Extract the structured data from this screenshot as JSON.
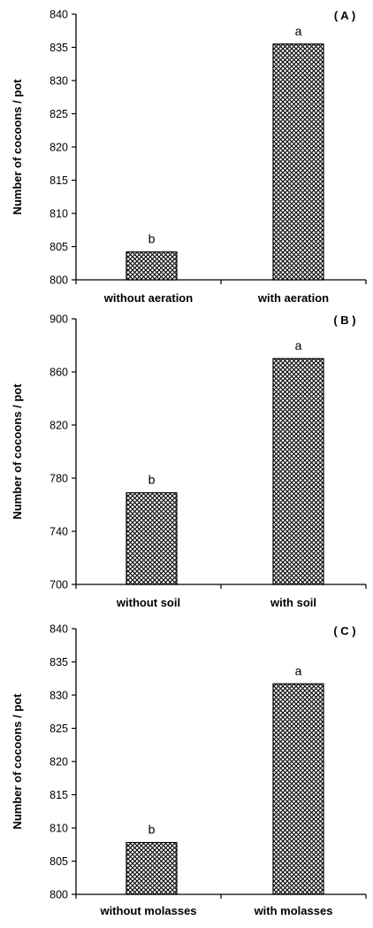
{
  "chart_data": [
    {
      "type": "bar",
      "panel_label": "( A )",
      "ylabel": "Number of cocoons / pot",
      "ylim": [
        800,
        840
      ],
      "yticks": [
        "800",
        "805",
        "810",
        "815",
        "820",
        "825",
        "830",
        "835",
        "840"
      ],
      "categories": [
        "without aeration",
        "with aeration"
      ],
      "values": [
        804.2,
        835.5
      ],
      "letters": [
        "b",
        "a"
      ]
    },
    {
      "type": "bar",
      "panel_label": "( B )",
      "ylabel": "Number of cocoons / pot",
      "ylim": [
        700,
        900
      ],
      "yticks": [
        "700",
        "740",
        "780",
        "820",
        "860",
        "900"
      ],
      "categories": [
        "without soil",
        "with soil"
      ],
      "values": [
        769,
        870
      ],
      "letters": [
        "b",
        "a"
      ]
    },
    {
      "type": "bar",
      "panel_label": "( C )",
      "ylabel": "Number of cocoons / pot",
      "ylim": [
        800,
        840
      ],
      "yticks": [
        "800",
        "805",
        "810",
        "815",
        "820",
        "825",
        "830",
        "835",
        "840"
      ],
      "categories": [
        "without molasses",
        "with molasses"
      ],
      "values": [
        807.8,
        831.7
      ],
      "letters": [
        "b",
        "a"
      ]
    }
  ]
}
